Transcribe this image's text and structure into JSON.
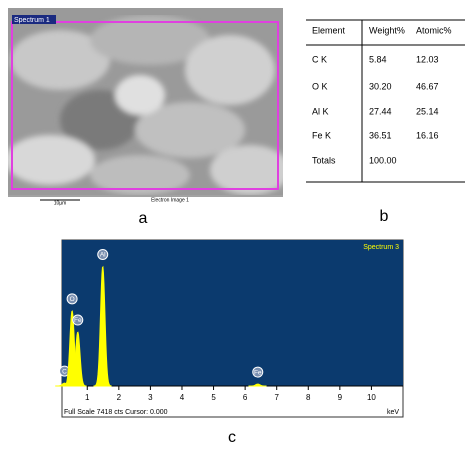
{
  "panel_a": {
    "image_label": "Spectrum 1",
    "scale_bar": "10µm",
    "caption": "Electron Image 1",
    "label": "a"
  },
  "table": {
    "header": [
      "Element",
      "Weight%",
      "Atomic%"
    ],
    "rows": [
      [
        "C K",
        "5.84",
        "12.03"
      ],
      [
        "O K",
        "30.20",
        "46.67"
      ],
      [
        "Al K",
        "27.44",
        "25.14"
      ],
      [
        "Fe K",
        "36.51",
        "16.16"
      ],
      [
        "Totals",
        "100.00"
      ]
    ],
    "label": "b"
  },
  "chart_data": {
    "type": "spectrum",
    "title": "Spectrum 3",
    "peaks": {
      "labels": [
        "C",
        "O",
        "Fe",
        "Al",
        "Fe"
      ],
      "x": [
        0.28,
        0.52,
        0.7,
        1.49,
        6.4
      ],
      "values": [
        150,
        3900,
        2800,
        6200,
        100
      ]
    },
    "xlim": [
      0.2,
      11
    ],
    "xticks": [
      1,
      2,
      3,
      4,
      5,
      6,
      7,
      8,
      9,
      10
    ],
    "ylim": [
      0,
      7418
    ],
    "x_unit": "keV",
    "footer": "Full Scale 7418 cts Cursor: 0.000",
    "color": "#ffff00",
    "label": "c"
  }
}
